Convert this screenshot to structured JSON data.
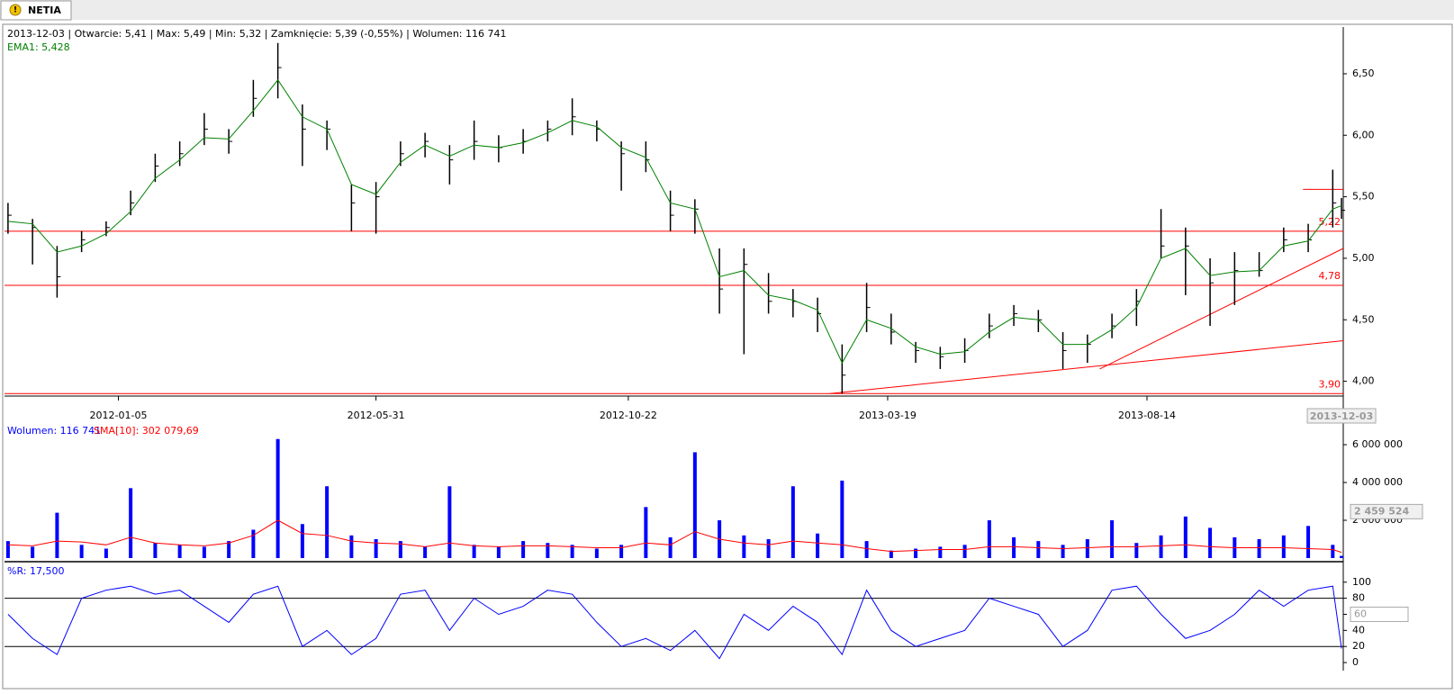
{
  "tab": "NETIA",
  "chart_data": [
    {
      "type": "ohlc",
      "header": "2013-12-03 | Otwarcie: 5,41 | Max: 5,49 | Min: 5,32 | Zamknięcie: 5,39 (-0,55%)  | Wolumen: 116 741",
      "ema_label": "EMA1: 5,428",
      "x": [
        "2011-11-03",
        "2011-11-17",
        "2011-12-01",
        "2011-12-15",
        "2011-12-29",
        "2012-01-12",
        "2012-01-26",
        "2012-02-09",
        "2012-02-23",
        "2012-03-08",
        "2012-03-22",
        "2012-04-05",
        "2012-04-19",
        "2012-05-03",
        "2012-05-17",
        "2012-05-31",
        "2012-06-14",
        "2012-06-28",
        "2012-07-12",
        "2012-07-26",
        "2012-08-09",
        "2012-08-23",
        "2012-09-06",
        "2012-09-20",
        "2012-10-04",
        "2012-10-18",
        "2012-11-01",
        "2012-11-15",
        "2012-11-29",
        "2012-12-13",
        "2012-12-27",
        "2013-01-10",
        "2013-01-24",
        "2013-02-07",
        "2013-02-21",
        "2013-03-07",
        "2013-03-21",
        "2013-04-04",
        "2013-04-18",
        "2013-05-02",
        "2013-05-16",
        "2013-05-30",
        "2013-06-13",
        "2013-06-27",
        "2013-07-11",
        "2013-07-25",
        "2013-08-08",
        "2013-08-22",
        "2013-09-05",
        "2013-09-19",
        "2013-10-03",
        "2013-10-17",
        "2013-10-31",
        "2013-11-14",
        "2013-11-28",
        "2013-12-03"
      ],
      "high": [
        5.45,
        5.32,
        5.1,
        5.22,
        5.3,
        5.55,
        5.85,
        5.95,
        6.18,
        6.05,
        6.45,
        6.75,
        6.25,
        6.12,
        5.6,
        5.62,
        5.95,
        6.02,
        5.92,
        6.12,
        6.0,
        6.05,
        6.12,
        6.3,
        6.12,
        5.95,
        5.95,
        5.55,
        5.48,
        5.08,
        5.08,
        4.88,
        4.75,
        4.68,
        4.3,
        4.8,
        4.55,
        4.32,
        4.28,
        4.35,
        4.55,
        4.62,
        4.58,
        4.4,
        4.38,
        4.55,
        4.75,
        5.4,
        5.25,
        5.0,
        5.05,
        5.05,
        5.25,
        5.28,
        5.72,
        5.49
      ],
      "low": [
        5.2,
        4.95,
        4.68,
        5.05,
        5.18,
        5.35,
        5.62,
        5.75,
        5.92,
        5.85,
        6.15,
        6.3,
        5.75,
        5.88,
        5.22,
        5.2,
        5.75,
        5.82,
        5.6,
        5.8,
        5.78,
        5.85,
        5.95,
        6.0,
        5.95,
        5.55,
        5.7,
        5.22,
        5.2,
        4.55,
        4.22,
        4.55,
        4.52,
        4.4,
        3.9,
        4.4,
        4.3,
        4.15,
        4.1,
        4.15,
        4.35,
        4.45,
        4.4,
        4.1,
        4.15,
        4.35,
        4.45,
        5.0,
        4.7,
        4.45,
        4.62,
        4.85,
        5.05,
        5.05,
        5.25,
        5.32
      ],
      "close": [
        5.35,
        5.25,
        4.85,
        5.15,
        5.25,
        5.45,
        5.75,
        5.85,
        6.05,
        5.95,
        6.3,
        6.55,
        6.05,
        6.05,
        5.45,
        5.5,
        5.85,
        5.95,
        5.8,
        5.95,
        5.9,
        5.95,
        6.05,
        6.15,
        6.05,
        5.85,
        5.8,
        5.35,
        5.4,
        4.75,
        4.95,
        4.65,
        4.65,
        4.55,
        4.05,
        4.6,
        4.4,
        4.25,
        4.2,
        4.25,
        4.45,
        4.55,
        4.5,
        4.25,
        4.3,
        4.45,
        4.65,
        5.1,
        5.1,
        4.8,
        4.9,
        4.9,
        5.15,
        5.15,
        5.45,
        5.39
      ],
      "color": "#000000",
      "ema": {
        "color": "#008000",
        "values": [
          5.3,
          5.28,
          5.05,
          5.1,
          5.2,
          5.38,
          5.65,
          5.8,
          5.98,
          5.97,
          6.2,
          6.45,
          6.15,
          6.05,
          5.6,
          5.52,
          5.78,
          5.92,
          5.83,
          5.92,
          5.9,
          5.94,
          6.02,
          6.12,
          6.07,
          5.9,
          5.82,
          5.45,
          5.4,
          4.85,
          4.9,
          4.7,
          4.66,
          4.58,
          4.15,
          4.5,
          4.43,
          4.28,
          4.22,
          4.24,
          4.4,
          4.52,
          4.5,
          4.3,
          4.3,
          4.42,
          4.6,
          5.0,
          5.08,
          4.86,
          4.89,
          4.9,
          5.1,
          5.14,
          5.4,
          5.428
        ]
      },
      "levels": [
        {
          "value": 5.22,
          "label": "5,22"
        },
        {
          "value": 4.78,
          "label": "4,78"
        },
        {
          "value": 3.9,
          "label": "3,90"
        }
      ],
      "level_color": "#ff0000",
      "trendlines": [
        {
          "x": [
            "2013-02-14",
            "2013-12-04"
          ],
          "y": [
            3.9,
            4.33
          ]
        },
        {
          "x": [
            "2013-07-18",
            "2013-12-04"
          ],
          "y": [
            4.1,
            5.08
          ]
        },
        {
          "x": [
            "2013-11-11",
            "2013-12-04"
          ],
          "y": [
            5.56,
            5.56
          ]
        }
      ],
      "xlim": [
        "2011-11-01",
        "2013-12-04"
      ],
      "xticks": [
        "2012-01-05",
        "2012-05-31",
        "2012-10-22",
        "2013-03-19",
        "2013-08-14"
      ],
      "cursor_x": "2013-12-03",
      "ylim": [
        3.88,
        6.88
      ],
      "yticks": [
        {
          "value": 4,
          "label": "4,00"
        },
        {
          "value": 4.5,
          "label": "4,50"
        },
        {
          "value": 5,
          "label": "5,00"
        },
        {
          "value": 5.5,
          "label": "5,50"
        },
        {
          "value": 6,
          "label": "6,00"
        },
        {
          "value": 6.5,
          "label": "6,50"
        }
      ]
    },
    {
      "type": "bar",
      "header": "Wolumen: 116 741",
      "header2": "SMA[10]: 302 079,69",
      "color": "#0000ff",
      "values": [
        900000,
        600000,
        2400000,
        700000,
        500000,
        3700000,
        800000,
        700000,
        600000,
        900000,
        1500000,
        6300000,
        1800000,
        3800000,
        1200000,
        1000000,
        900000,
        600000,
        3800000,
        700000,
        600000,
        900000,
        800000,
        700000,
        500000,
        700000,
        2700000,
        1100000,
        5600000,
        2000000,
        1200000,
        1000000,
        3800000,
        1300000,
        4100000,
        900000,
        400000,
        500000,
        600000,
        700000,
        2000000,
        1100000,
        900000,
        700000,
        1000000,
        2000000,
        800000,
        1200000,
        2200000,
        1600000,
        1100000,
        1000000,
        1200000,
        1700000,
        700000,
        116741
      ],
      "sma": {
        "color": "#ff0000",
        "values": [
          700000,
          650000,
          900000,
          850000,
          700000,
          1100000,
          800000,
          700000,
          650000,
          800000,
          1200000,
          2000000,
          1300000,
          1200000,
          900000,
          800000,
          750000,
          600000,
          800000,
          650000,
          600000,
          650000,
          650000,
          600000,
          550000,
          550000,
          800000,
          700000,
          1400000,
          1000000,
          800000,
          700000,
          900000,
          800000,
          700000,
          500000,
          350000,
          400000,
          450000,
          450000,
          600000,
          600000,
          550000,
          500000,
          550000,
          600000,
          600000,
          650000,
          700000,
          600000,
          550000,
          550000,
          550000,
          500000,
          450000,
          302079.69
        ]
      },
      "ylim": [
        0,
        7050000
      ],
      "yticks": [
        {
          "value": 2000000,
          "label": "2 000 000"
        },
        {
          "value": 4000000,
          "label": "4 000 000"
        },
        {
          "value": 6000000,
          "label": "6 000 000"
        }
      ],
      "cursor_value": {
        "value": 2459524,
        "label": "2 459 524"
      }
    },
    {
      "type": "line",
      "header": "%R: 17,500",
      "color": "#0000ff",
      "values": [
        60,
        30,
        10,
        80,
        90,
        95,
        85,
        90,
        70,
        50,
        85,
        95,
        20,
        40,
        10,
        30,
        85,
        90,
        40,
        80,
        60,
        70,
        90,
        85,
        50,
        20,
        30,
        15,
        40,
        5,
        60,
        40,
        70,
        50,
        10,
        90,
        40,
        20,
        30,
        40,
        80,
        70,
        60,
        20,
        40,
        90,
        95,
        60,
        30,
        40,
        60,
        90,
        70,
        90,
        95,
        17.5
      ],
      "reference_lines": [
        20,
        80
      ],
      "ylim": [
        -10,
        121
      ],
      "yticks": [
        0,
        20,
        40,
        60,
        80,
        100
      ],
      "cursor_value": 60
    }
  ]
}
